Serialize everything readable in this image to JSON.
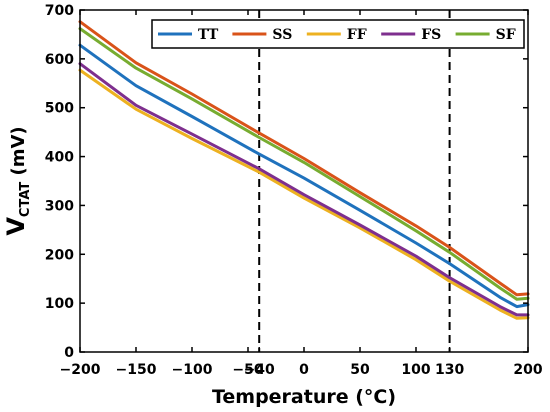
{
  "chart_data": {
    "type": "line",
    "xlabel": "Temperature (°C)",
    "ylabel_main": "V",
    "ylabel_sub": "CTAT",
    "ylabel_unit": " (mV)",
    "xlim": [
      -200,
      200
    ],
    "ylim": [
      0,
      700
    ],
    "x_ticks": [
      -200,
      -150,
      -100,
      -50,
      -40,
      0,
      50,
      100,
      130,
      200
    ],
    "x_tick_labels": [
      "−200",
      "−150",
      "−100",
      "−50",
      "−40",
      "0",
      "50",
      "100",
      "130",
      "200"
    ],
    "y_ticks": [
      0,
      100,
      200,
      300,
      400,
      500,
      600,
      700
    ],
    "y_tick_labels": [
      "0",
      "100",
      "200",
      "300",
      "400",
      "500",
      "600",
      "700"
    ],
    "vlines": [
      -40,
      130
    ],
    "grid": false,
    "legend_position": "top-right",
    "series": [
      {
        "name": "TT",
        "color": "#1f72bd",
        "x": [
          -200,
          -150,
          -100,
          -40,
          0,
          50,
          100,
          130,
          175,
          190,
          200
        ],
        "y": [
          628,
          545,
          482,
          405,
          356,
          290,
          223,
          181,
          112,
          93,
          97
        ]
      },
      {
        "name": "SS",
        "color": "#d95319",
        "x": [
          -200,
          -150,
          -100,
          -40,
          0,
          50,
          100,
          130,
          175,
          190,
          200
        ],
        "y": [
          676,
          592,
          528,
          448,
          396,
          326,
          258,
          214,
          141,
          117,
          119
        ]
      },
      {
        "name": "FF",
        "color": "#edb120",
        "x": [
          -200,
          -150,
          -100,
          -40,
          0,
          50,
          100,
          130,
          175,
          190,
          200
        ],
        "y": [
          577,
          497,
          437,
          368,
          315,
          254,
          189,
          145,
          86,
          69,
          70
        ]
      },
      {
        "name": "FS",
        "color": "#7e2f8e",
        "x": [
          -200,
          -150,
          -100,
          -40,
          0,
          50,
          100,
          130,
          175,
          190,
          200
        ],
        "y": [
          590,
          505,
          446,
          375,
          322,
          260,
          196,
          152,
          93,
          76,
          76
        ]
      },
      {
        "name": "SF",
        "color": "#77ac30",
        "x": [
          -200,
          -150,
          -100,
          -40,
          0,
          50,
          100,
          130,
          175,
          190,
          200
        ],
        "y": [
          662,
          581,
          518,
          439,
          388,
          318,
          248,
          204,
          131,
          108,
          110
        ]
      }
    ]
  }
}
